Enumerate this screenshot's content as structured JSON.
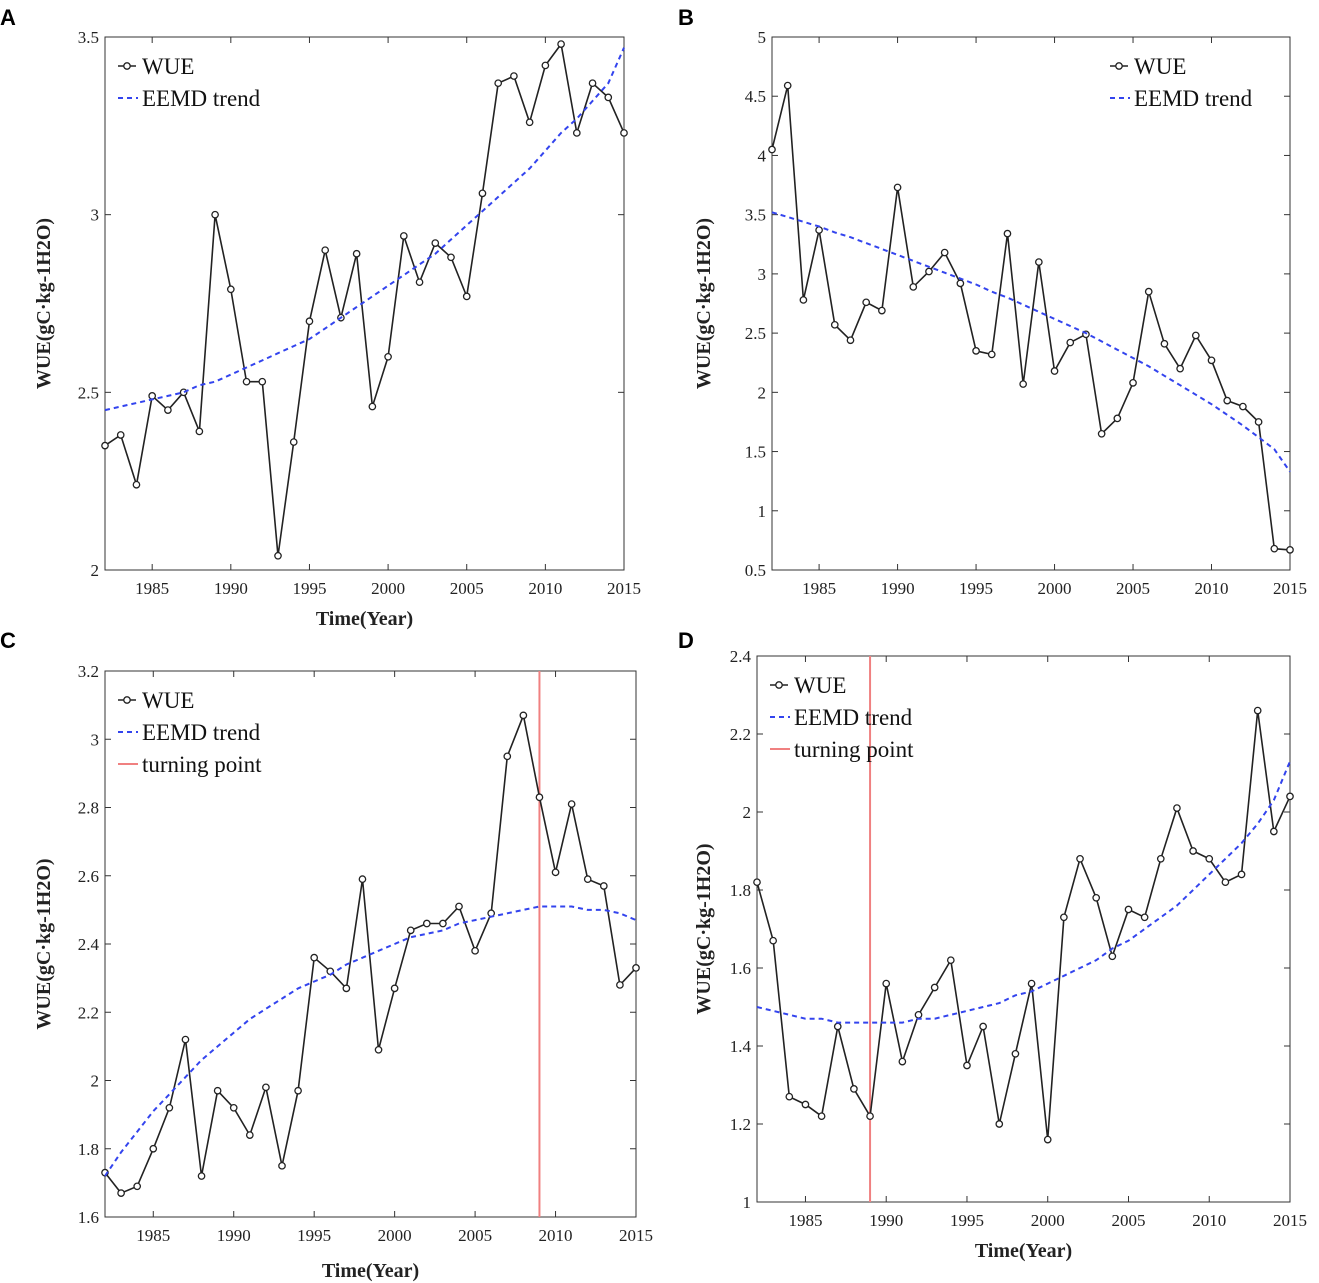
{
  "figure": {
    "chart_data": [
      {
        "panel": "A",
        "type": "line",
        "xlabel": "Time(Year)",
        "ylabel": "WUE(gC·kg-1H2O)",
        "xlim": [
          1982,
          2015
        ],
        "ylim": [
          2,
          3.5
        ],
        "xticks": [
          1985,
          1990,
          1995,
          2000,
          2005,
          2010,
          2015
        ],
        "yticks": [
          2,
          2.5,
          3,
          3.5
        ],
        "ytick_labels": [
          "2",
          "2.5",
          "3",
          "3.5"
        ],
        "x": [
          1982,
          1983,
          1984,
          1985,
          1986,
          1987,
          1988,
          1989,
          1990,
          1991,
          1992,
          1993,
          1994,
          1995,
          1996,
          1997,
          1998,
          1999,
          2000,
          2001,
          2002,
          2003,
          2004,
          2005,
          2006,
          2007,
          2008,
          2009,
          2010,
          2011,
          2012,
          2013,
          2014,
          2015
        ],
        "series": [
          {
            "name": "WUE",
            "style": "line-marker",
            "color": "#222222",
            "values": [
              2.35,
              2.38,
              2.24,
              2.49,
              2.45,
              2.5,
              2.39,
              3.0,
              2.79,
              2.53,
              2.53,
              2.04,
              2.36,
              2.7,
              2.9,
              2.71,
              2.89,
              2.46,
              2.6,
              2.94,
              2.81,
              2.92,
              2.88,
              2.77,
              3.06,
              3.37,
              3.39,
              3.26,
              3.42,
              3.48,
              3.23,
              3.37,
              3.33,
              3.23
            ]
          },
          {
            "name": "EEMD trend",
            "style": "dashed",
            "color": "#3344ee",
            "values": [
              2.45,
              2.46,
              2.47,
              2.48,
              2.49,
              2.5,
              2.52,
              2.53,
              2.55,
              2.57,
              2.59,
              2.61,
              2.63,
              2.65,
              2.68,
              2.71,
              2.74,
              2.77,
              2.8,
              2.83,
              2.86,
              2.89,
              2.93,
              2.97,
              3.01,
              3.05,
              3.09,
              3.13,
              3.18,
              3.23,
              3.27,
              3.32,
              3.37,
              3.47
            ]
          }
        ],
        "legend": [
          "WUE",
          "EEMD trend"
        ],
        "legend_position": "top-left"
      },
      {
        "panel": "B",
        "type": "line",
        "xlabel": "",
        "ylabel": "WUE(gC·kg-1H2O)",
        "xlim": [
          1982,
          2015
        ],
        "ylim": [
          0.5,
          5
        ],
        "xticks": [
          1985,
          1990,
          1995,
          2000,
          2005,
          2010,
          2015
        ],
        "yticks": [
          0.5,
          1,
          1.5,
          2,
          2.5,
          3,
          3.5,
          4,
          4.5,
          5
        ],
        "ytick_labels": [
          "0.5",
          "1",
          "1.5",
          "2",
          "2.5",
          "3",
          "3.5",
          "4",
          "4.5",
          "5"
        ],
        "x": [
          1982,
          1983,
          1984,
          1985,
          1986,
          1987,
          1988,
          1989,
          1990,
          1991,
          1992,
          1993,
          1994,
          1995,
          1996,
          1997,
          1998,
          1999,
          2000,
          2001,
          2002,
          2003,
          2004,
          2005,
          2006,
          2007,
          2008,
          2009,
          2010,
          2011,
          2012,
          2013,
          2014,
          2015
        ],
        "series": [
          {
            "name": "WUE",
            "style": "line-marker",
            "color": "#222222",
            "values": [
              4.05,
              4.59,
              2.78,
              3.37,
              2.57,
              2.44,
              2.76,
              2.69,
              3.73,
              2.89,
              3.02,
              3.18,
              2.92,
              2.35,
              2.32,
              3.34,
              2.07,
              3.1,
              2.18,
              2.42,
              2.49,
              1.65,
              1.78,
              2.08,
              2.85,
              2.41,
              2.2,
              2.48,
              2.27,
              1.93,
              1.88,
              1.75,
              0.68,
              0.67
            ]
          },
          {
            "name": "EEMD trend",
            "style": "dashed",
            "color": "#3344ee",
            "values": [
              3.52,
              3.48,
              3.44,
              3.4,
              3.35,
              3.31,
              3.26,
              3.21,
              3.16,
              3.11,
              3.06,
              3.01,
              2.96,
              2.91,
              2.85,
              2.8,
              2.74,
              2.68,
              2.62,
              2.56,
              2.5,
              2.43,
              2.36,
              2.29,
              2.22,
              2.14,
              2.06,
              1.98,
              1.9,
              1.81,
              1.72,
              1.62,
              1.52,
              1.33
            ]
          }
        ],
        "legend": [
          "WUE",
          "EEMD trend"
        ],
        "legend_position": "top-right"
      },
      {
        "panel": "C",
        "type": "line",
        "xlabel": "Time(Year)",
        "ylabel": "WUE(gC·kg-1H2O)",
        "xlim": [
          1982,
          2015
        ],
        "ylim": [
          1.6,
          3.2
        ],
        "xticks": [
          1985,
          1990,
          1995,
          2000,
          2005,
          2010,
          2015
        ],
        "yticks": [
          1.6,
          1.8,
          2.0,
          2.2,
          2.4,
          2.6,
          2.8,
          3.0,
          3.2
        ],
        "ytick_labels": [
          "1.6",
          "1.8",
          "2",
          "2.2",
          "2.4",
          "2.6",
          "2.8",
          "3",
          "3.2"
        ],
        "x": [
          1982,
          1983,
          1984,
          1985,
          1986,
          1987,
          1988,
          1989,
          1990,
          1991,
          1992,
          1993,
          1994,
          1995,
          1996,
          1997,
          1998,
          1999,
          2000,
          2001,
          2002,
          2003,
          2004,
          2005,
          2006,
          2007,
          2008,
          2009,
          2010,
          2011,
          2012,
          2013,
          2014,
          2015
        ],
        "series": [
          {
            "name": "WUE",
            "style": "line-marker",
            "color": "#222222",
            "values": [
              1.73,
              1.67,
              1.69,
              1.8,
              1.92,
              2.12,
              1.72,
              1.97,
              1.92,
              1.84,
              1.98,
              1.75,
              1.97,
              2.36,
              2.32,
              2.27,
              2.59,
              2.09,
              2.27,
              2.44,
              2.46,
              2.46,
              2.51,
              2.38,
              2.49,
              2.95,
              3.07,
              2.83,
              2.61,
              2.81,
              2.59,
              2.57,
              2.28,
              2.33
            ]
          },
          {
            "name": "EEMD trend",
            "style": "dashed",
            "color": "#3344ee",
            "values": [
              1.72,
              1.79,
              1.85,
              1.91,
              1.96,
              2.01,
              2.06,
              2.1,
              2.14,
              2.18,
              2.21,
              2.24,
              2.27,
              2.29,
              2.31,
              2.34,
              2.36,
              2.38,
              2.4,
              2.42,
              2.43,
              2.44,
              2.46,
              2.47,
              2.48,
              2.49,
              2.5,
              2.51,
              2.51,
              2.51,
              2.5,
              2.5,
              2.49,
              2.47
            ]
          }
        ],
        "vline": {
          "name": "turning point",
          "x": 2009,
          "color": "#f08080"
        },
        "legend": [
          "WUE",
          "EEMD trend",
          "turning point"
        ],
        "legend_position": "top-left"
      },
      {
        "panel": "D",
        "type": "line",
        "xlabel": "Time(Year)",
        "ylabel": "WUE(gC·kg-1H2O)",
        "xlim": [
          1982,
          2015
        ],
        "ylim": [
          1,
          2.4
        ],
        "xticks": [
          1985,
          1990,
          1995,
          2000,
          2005,
          2010,
          2015
        ],
        "yticks": [
          1,
          1.2,
          1.4,
          1.6,
          1.8,
          2.0,
          2.2,
          2.4
        ],
        "ytick_labels": [
          "1",
          "1.2",
          "1.4",
          "1.6",
          "1.8",
          "2",
          "2.2",
          "2.4"
        ],
        "x": [
          1982,
          1983,
          1984,
          1985,
          1986,
          1987,
          1988,
          1989,
          1990,
          1991,
          1992,
          1993,
          1994,
          1995,
          1996,
          1997,
          1998,
          1999,
          2000,
          2001,
          2002,
          2003,
          2004,
          2005,
          2006,
          2007,
          2008,
          2009,
          2010,
          2011,
          2012,
          2013,
          2014,
          2015
        ],
        "series": [
          {
            "name": "WUE",
            "style": "line-marker",
            "color": "#222222",
            "values": [
              1.82,
              1.67,
              1.27,
              1.25,
              1.22,
              1.45,
              1.29,
              1.22,
              1.56,
              1.36,
              1.48,
              1.55,
              1.62,
              1.35,
              1.45,
              1.2,
              1.38,
              1.56,
              1.16,
              1.73,
              1.88,
              1.78,
              1.63,
              1.75,
              1.73,
              1.88,
              2.01,
              1.9,
              1.88,
              1.82,
              1.84,
              2.26,
              1.95,
              2.04
            ]
          },
          {
            "name": "EEMD trend",
            "style": "dashed",
            "color": "#3344ee",
            "values": [
              1.5,
              1.49,
              1.48,
              1.47,
              1.47,
              1.46,
              1.46,
              1.46,
              1.46,
              1.46,
              1.47,
              1.47,
              1.48,
              1.49,
              1.5,
              1.51,
              1.53,
              1.54,
              1.56,
              1.58,
              1.6,
              1.62,
              1.65,
              1.67,
              1.7,
              1.73,
              1.76,
              1.8,
              1.84,
              1.88,
              1.92,
              1.97,
              2.03,
              2.13
            ]
          }
        ],
        "vline": {
          "name": "turning point",
          "x": 1989,
          "color": "#f08080"
        },
        "legend": [
          "WUE",
          "EEMD trend",
          "turning point"
        ],
        "legend_position": "top-left"
      }
    ]
  }
}
